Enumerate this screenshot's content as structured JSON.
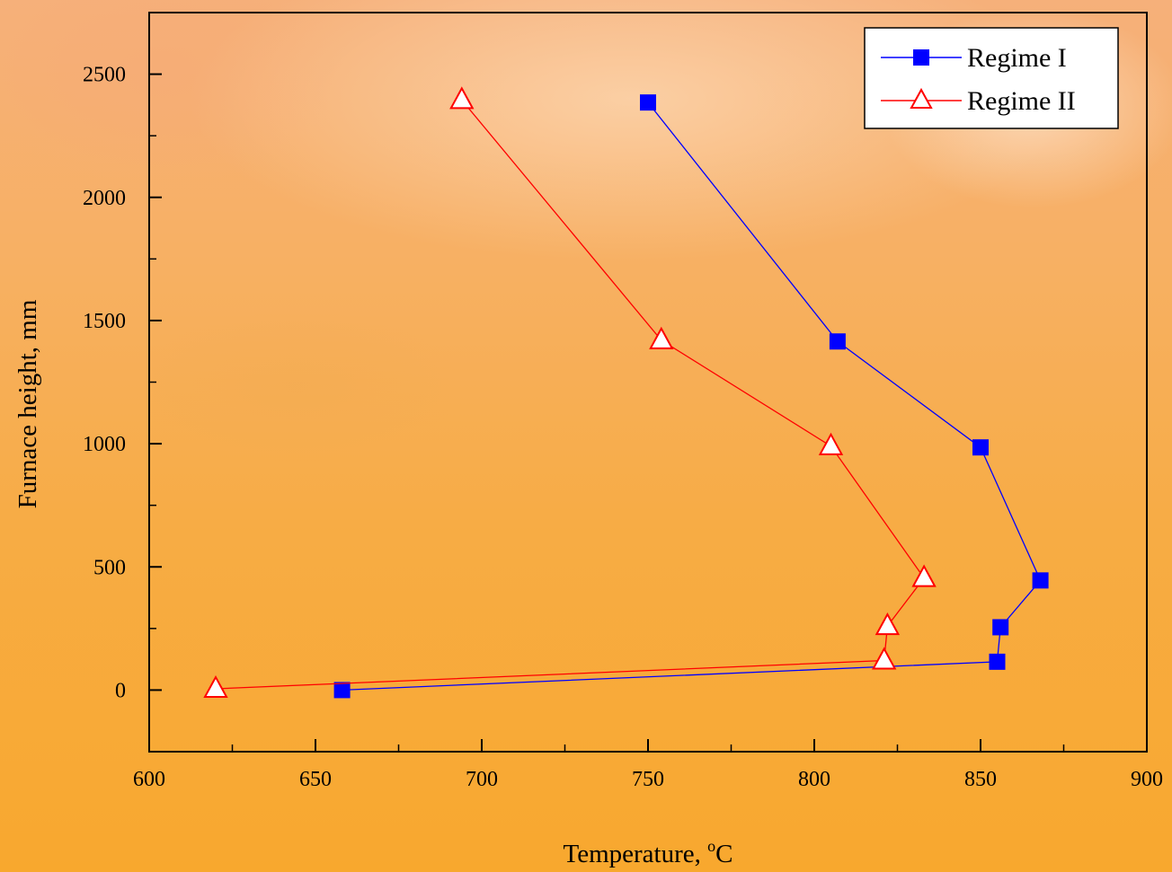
{
  "chart_data": {
    "type": "line",
    "xlabel": "Temperature, ",
    "xlabel_sup": "o",
    "xlabel_unit": "C",
    "ylabel": "Furnace height, mm",
    "xlim": [
      600,
      900
    ],
    "ylim": [
      -250,
      2750
    ],
    "x_ticks": [
      "600",
      "650",
      "700",
      "750",
      "800",
      "850",
      "900"
    ],
    "y_ticks": [
      "0",
      "500",
      "1000",
      "1500",
      "2000",
      "2500"
    ],
    "grid": false,
    "legend_position": "top-right",
    "series": [
      {
        "name": "Regime I",
        "color": "#0000ff",
        "marker": "filled-square",
        "points": [
          {
            "x": 658,
            "y": 0
          },
          {
            "x": 855,
            "y": 115
          },
          {
            "x": 856,
            "y": 255
          },
          {
            "x": 868,
            "y": 445
          },
          {
            "x": 850,
            "y": 985
          },
          {
            "x": 807,
            "y": 1415
          },
          {
            "x": 750,
            "y": 2385
          }
        ]
      },
      {
        "name": "Regime II",
        "color": "#ff0000",
        "marker": "open-triangle",
        "points": [
          {
            "x": 620,
            "y": 5
          },
          {
            "x": 821,
            "y": 120
          },
          {
            "x": 822,
            "y": 260
          },
          {
            "x": 833,
            "y": 455
          },
          {
            "x": 805,
            "y": 990
          },
          {
            "x": 754,
            "y": 1420
          },
          {
            "x": 694,
            "y": 2395
          }
        ]
      }
    ]
  }
}
